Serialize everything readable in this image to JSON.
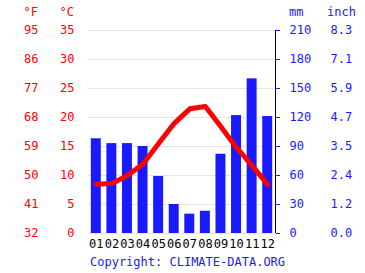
{
  "chart_data": {
    "type": "bar_line",
    "categories": [
      "01",
      "02",
      "03",
      "04",
      "05",
      "06",
      "07",
      "08",
      "09",
      "10",
      "11",
      "12"
    ],
    "series": [
      {
        "type": "bar",
        "axis": "y2",
        "color": "#1a1aff",
        "values": [
          98,
          93,
          93,
          90,
          59,
          30,
          20,
          23,
          82,
          122,
          160,
          121
        ]
      },
      {
        "type": "line",
        "color": "#ff0000",
        "values": [
          8.5,
          8.6,
          10,
          12,
          15.5,
          19,
          21.5,
          21.9,
          18.4,
          14.8,
          11.7,
          8.4
        ]
      }
    ],
    "y_label": "°C",
    "ylim": [
      0,
      35
    ],
    "yticks": [
      0,
      5,
      10,
      15,
      20,
      25,
      30,
      35
    ],
    "y_alt_label": "°F",
    "y_alt_ticks": [
      {
        "value": 0,
        "label": "32"
      },
      {
        "value": 5,
        "label": "41"
      },
      {
        "value": 10,
        "label": "50"
      },
      {
        "value": 15,
        "label": "59"
      },
      {
        "value": 20,
        "label": "68"
      },
      {
        "value": 25,
        "label": "77"
      },
      {
        "value": 30,
        "label": "86"
      },
      {
        "value": 35,
        "label": "95"
      }
    ],
    "y2_label": "mm",
    "y2lim": [
      0,
      210
    ],
    "y2ticks": [
      0,
      30,
      60,
      90,
      120,
      150,
      180,
      210
    ],
    "y2_alt_label": "inch",
    "y2_alt_ticks": [
      {
        "value": 0,
        "label": "0.0"
      },
      {
        "value": 30,
        "label": "1.2"
      },
      {
        "value": 60,
        "label": "2.4"
      },
      {
        "value": 90,
        "label": "3.5"
      },
      {
        "value": 120,
        "label": "4.7"
      },
      {
        "value": 150,
        "label": "5.9"
      },
      {
        "value": 180,
        "label": "7.1"
      },
      {
        "value": 210,
        "label": "8.3"
      }
    ],
    "caption": "Copyright: CLIMATE-DATA.ORG",
    "grid": true
  }
}
